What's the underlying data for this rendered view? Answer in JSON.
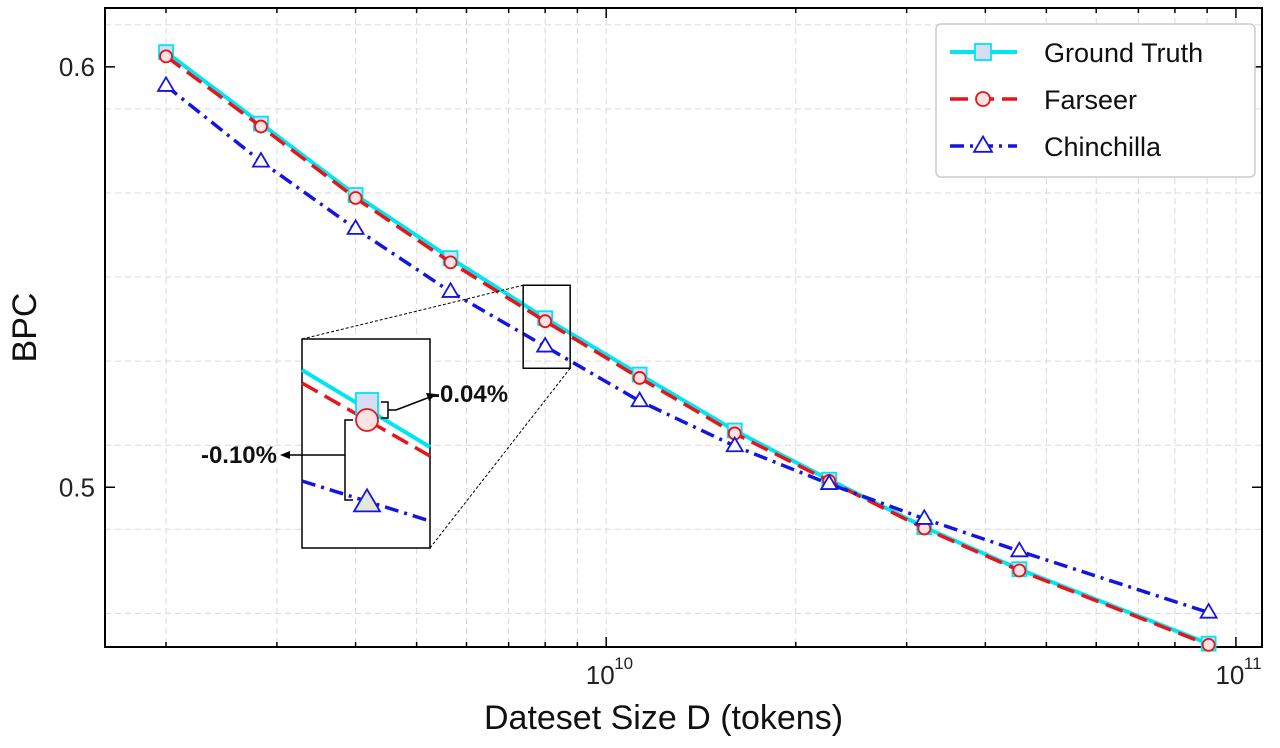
{
  "chart_data": {
    "type": "line",
    "xlabel": "Dateset Size D (tokens)",
    "ylabel": "BPC",
    "xscale": "log",
    "xlim": [
      1600000000.0,
      110000000000.0
    ],
    "ylim": [
      0.462,
      0.614
    ],
    "grid": true,
    "legend_placement": "top-right",
    "x_ticks": [
      {
        "value": 10000000000.0,
        "base": "10",
        "exp": "10"
      },
      {
        "value": 100000000000.0,
        "base": "10",
        "exp": "11"
      }
    ],
    "y_ticks": [
      {
        "value": 0.5,
        "label": "0.5"
      },
      {
        "value": 0.6,
        "label": "0.6"
      }
    ],
    "x": [
      2000000000.0,
      2830000000.0,
      4000000000.0,
      5660000000.0,
      8000000000.0,
      11300000000.0,
      16000000000.0,
      22600000000.0,
      32000000000.0,
      45300000000.0,
      90500000000.0
    ],
    "series": [
      {
        "name": "Ground Truth",
        "color": "#00e5f0",
        "marker": "square",
        "values": [
          0.6035,
          0.5865,
          0.5695,
          0.5545,
          0.5402,
          0.5268,
          0.5135,
          0.5018,
          0.4905,
          0.4805,
          0.4628
        ]
      },
      {
        "name": "Farseer",
        "color": "#e8141a",
        "marker": "circle",
        "values": [
          0.6025,
          0.5858,
          0.5688,
          0.5535,
          0.5395,
          0.526,
          0.5128,
          0.5015,
          0.4902,
          0.4802,
          0.4625
        ]
      },
      {
        "name": "Chinchilla",
        "color": "#1515e0",
        "marker": "triangle",
        "values": [
          0.5955,
          0.5775,
          0.5615,
          0.5465,
          0.5335,
          0.5205,
          0.5098,
          0.5008,
          0.4925,
          0.4848,
          0.4702
        ]
      }
    ],
    "annotations": [
      {
        "text": "-0.04%"
      },
      {
        "text": "-0.10%"
      }
    ]
  }
}
